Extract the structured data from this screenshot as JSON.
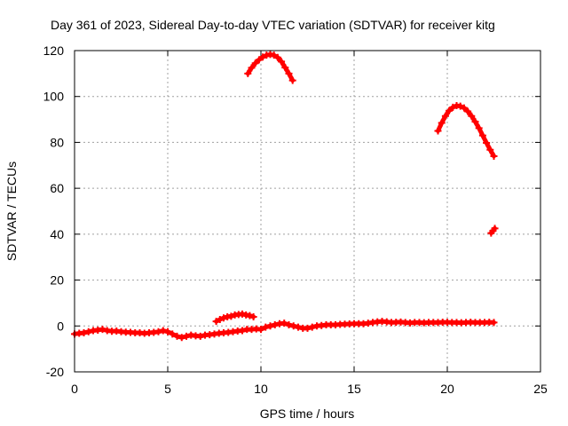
{
  "chart_data": {
    "type": "scatter",
    "title": "Day 361 of 2023, Sidereal Day-to-day VTEC variation (SDTVAR) for receiver kitg",
    "xlabel": "GPS time / hours",
    "ylabel": "SDTVAR / TECUs",
    "xlim": [
      0,
      25
    ],
    "ylim": [
      -20,
      120
    ],
    "xticks": [
      0,
      5,
      10,
      15,
      20,
      25
    ],
    "yticks": [
      -20,
      0,
      20,
      40,
      60,
      80,
      100,
      120
    ],
    "grid": true,
    "marker": "plus",
    "color": "#ff0000",
    "series": [
      {
        "name": "baseline",
        "x": [
          0.0,
          0.25,
          0.5,
          0.75,
          1.0,
          1.25,
          1.5,
          1.75,
          2.0,
          2.25,
          2.5,
          2.75,
          3.0,
          3.25,
          3.5,
          3.75,
          4.0,
          4.25,
          4.5,
          4.75,
          5.0,
          5.25,
          5.5,
          5.75,
          6.0,
          6.25,
          6.5,
          6.75,
          7.0,
          7.25,
          7.5,
          7.75,
          8.0,
          8.25,
          8.5,
          8.75,
          9.0,
          9.25,
          9.5,
          9.75,
          10.0,
          10.25,
          10.5,
          10.75,
          11.0,
          11.25,
          11.5,
          11.75,
          12.0,
          12.25,
          12.5,
          12.75,
          13.0,
          13.25,
          13.5,
          13.75,
          14.0,
          14.25,
          14.5,
          14.75,
          15.0,
          15.25,
          15.5,
          15.75,
          16.0,
          16.25,
          16.5,
          16.75,
          17.0,
          17.25,
          17.5,
          17.75,
          18.0,
          18.25,
          18.5,
          18.75,
          19.0,
          19.25,
          19.5,
          19.75,
          20.0,
          20.25,
          20.5,
          20.75,
          21.0,
          21.25,
          21.5,
          21.75,
          22.0,
          22.25,
          22.5
        ],
        "y": [
          -3.5,
          -3.2,
          -3.0,
          -2.5,
          -2.0,
          -1.8,
          -1.5,
          -2.0,
          -2.3,
          -2.2,
          -2.5,
          -2.7,
          -2.8,
          -3.0,
          -3.0,
          -3.2,
          -3.0,
          -2.8,
          -2.5,
          -2.0,
          -2.5,
          -3.5,
          -4.5,
          -5.0,
          -4.5,
          -4.0,
          -4.3,
          -4.5,
          -4.0,
          -3.8,
          -3.5,
          -3.2,
          -3.0,
          -2.8,
          -2.5,
          -2.2,
          -2.0,
          -1.5,
          -1.5,
          -1.3,
          -1.5,
          -0.5,
          0.0,
          0.5,
          1.0,
          1.2,
          0.5,
          0.0,
          -0.5,
          -1.0,
          -1.0,
          -0.5,
          0.0,
          0.2,
          0.5,
          0.5,
          0.5,
          0.7,
          0.8,
          0.9,
          1.0,
          1.0,
          1.0,
          1.2,
          1.5,
          1.8,
          2.0,
          1.8,
          1.5,
          1.6,
          1.7,
          1.5,
          1.3,
          1.5,
          1.5,
          1.4,
          1.5,
          1.5,
          1.5,
          1.6,
          1.6,
          1.5,
          1.5,
          1.4,
          1.5,
          1.6,
          1.5,
          1.5,
          1.5,
          1.6,
          1.5
        ]
      },
      {
        "name": "bump",
        "x": [
          7.6,
          7.8,
          8.0,
          8.2,
          8.4,
          8.6,
          8.8,
          9.0,
          9.2,
          9.4,
          9.6
        ],
        "y": [
          2.0,
          2.8,
          3.5,
          4.0,
          4.2,
          4.8,
          5.0,
          5.2,
          4.8,
          4.5,
          4.0
        ]
      },
      {
        "name": "arc1",
        "x": [
          9.3,
          9.5,
          9.7,
          9.9,
          10.1,
          10.3,
          10.5,
          10.7,
          10.9,
          11.1,
          11.3,
          11.5,
          11.7
        ],
        "y": [
          110.0,
          112.5,
          114.5,
          116.0,
          117.2,
          118.0,
          118.3,
          118.0,
          117.0,
          115.2,
          112.6,
          110.0,
          107.0
        ]
      },
      {
        "name": "arc2",
        "x": [
          19.5,
          19.7,
          19.9,
          20.1,
          20.3,
          20.5,
          20.7,
          20.9,
          21.1,
          21.3,
          21.5,
          21.7,
          21.9,
          22.1,
          22.3,
          22.5
        ],
        "y": [
          85.0,
          88.5,
          91.5,
          93.8,
          95.3,
          96.0,
          95.8,
          95.0,
          93.5,
          91.5,
          89.0,
          86.2,
          83.0,
          79.8,
          76.8,
          74.0
        ]
      },
      {
        "name": "tail",
        "x": [
          22.35,
          22.45,
          22.55
        ],
        "y": [
          40.5,
          41.5,
          42.5
        ]
      }
    ]
  }
}
